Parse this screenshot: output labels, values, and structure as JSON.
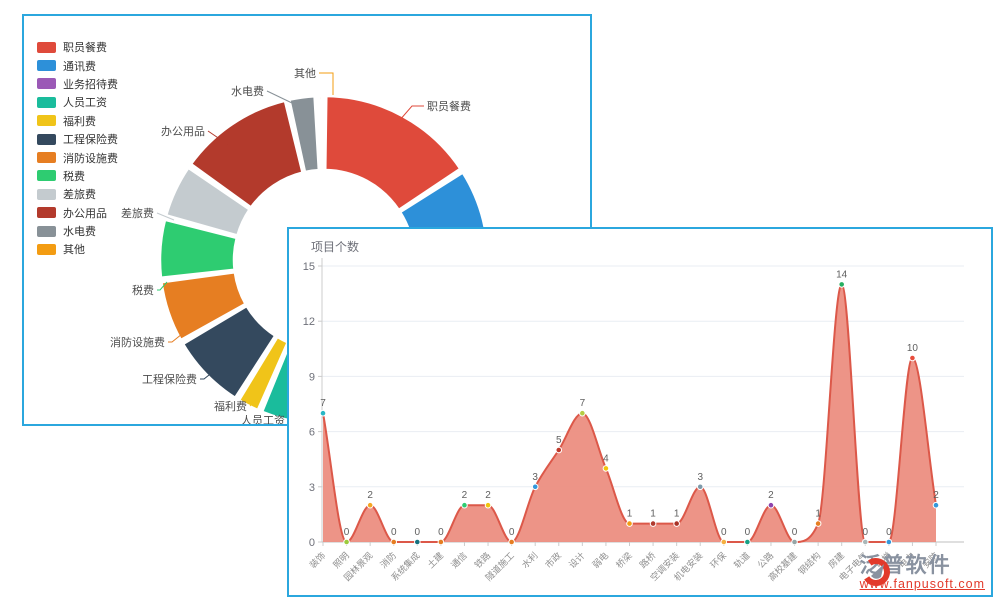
{
  "back_panel": {
    "legend": [
      {
        "label": "职员餐费",
        "color": "#df4a3b"
      },
      {
        "label": "通讯费",
        "color": "#2d90d9"
      },
      {
        "label": "业务招待费",
        "color": "#9b59b6"
      },
      {
        "label": "人员工资",
        "color": "#1abc9c"
      },
      {
        "label": "福利费",
        "color": "#f0c419"
      },
      {
        "label": "工程保险费",
        "color": "#34495e"
      },
      {
        "label": "消防设施费",
        "color": "#e67e22"
      },
      {
        "label": "税费",
        "color": "#2ecc71"
      },
      {
        "label": "差旅费",
        "color": "#c4cbcf"
      },
      {
        "label": "办公用品",
        "color": "#b33a2c"
      },
      {
        "label": "水电费",
        "color": "#889197"
      },
      {
        "label": "其他",
        "color": "#f39c12"
      }
    ]
  },
  "front_panel": {
    "title": "项目个数",
    "watermark": {
      "brand": "泛普软件",
      "url": "www.fanpusoft.com"
    }
  },
  "chart_data": [
    {
      "type": "pie",
      "donut": true,
      "legend_position": "left",
      "slices": [
        {
          "name": "职员餐费",
          "color": "#df4a3b",
          "start_deg": 0,
          "end_deg": 57,
          "callout": {
            "line": [
              [
                375,
                105
              ],
              [
                388,
                90
              ],
              [
                400,
                90
              ]
            ],
            "text": [
              403,
              90
            ],
            "anchor": "start"
          }
        },
        {
          "name": "通讯费",
          "color": "#2d90d9",
          "start_deg": 57,
          "end_deg": 95,
          "callout": null
        },
        {
          "name": "业务招待费",
          "color": "#9b59b6",
          "start_deg": 95,
          "end_deg": 135,
          "callout": null
        },
        {
          "name": "人员工资",
          "color": "#1abc9c",
          "start_deg": 135,
          "end_deg": 203,
          "callout": {
            "line": [
              [
                264,
                402
              ],
              [
                268,
                398
              ]
            ],
            "text": [
              261,
              404
            ],
            "anchor": "end"
          }
        },
        {
          "name": "福利费",
          "color": "#f0c419",
          "start_deg": 203,
          "end_deg": 212,
          "callout": {
            "line": [
              [
                232,
                384
              ],
              [
                226,
                390
              ]
            ],
            "text": [
              223,
              390
            ],
            "anchor": "end"
          }
        },
        {
          "name": "工程保险费",
          "color": "#34495e",
          "start_deg": 212,
          "end_deg": 240,
          "callout": {
            "line": [
              [
                190,
                355
              ],
              [
                180,
                363
              ],
              [
                176,
                363
              ]
            ],
            "text": [
              173,
              363
            ],
            "anchor": "end"
          }
        },
        {
          "name": "消防设施费",
          "color": "#e67e22",
          "start_deg": 240,
          "end_deg": 263,
          "callout": {
            "line": [
              [
                158,
                318
              ],
              [
                148,
                326
              ],
              [
                144,
                326
              ]
            ],
            "text": [
              141,
              326
            ],
            "anchor": "end"
          }
        },
        {
          "name": "税费",
          "color": "#2ecc71",
          "start_deg": 263,
          "end_deg": 285,
          "callout": {
            "line": [
              [
                143,
                266
              ],
              [
                136,
                274
              ],
              [
                133,
                274
              ]
            ],
            "text": [
              130,
              274
            ],
            "anchor": "end"
          }
        },
        {
          "name": "差旅费",
          "color": "#c4cbcf",
          "start_deg": 285,
          "end_deg": 305,
          "callout": {
            "line": [
              [
                150,
                204
              ],
              [
                133,
                197
              ]
            ],
            "text": [
              130,
              197
            ],
            "anchor": "end"
          }
        },
        {
          "name": "办公用品",
          "color": "#b33a2c",
          "start_deg": 305,
          "end_deg": 347,
          "callout": {
            "line": [
              [
                206,
                130
              ],
              [
                184,
                115
              ]
            ],
            "text": [
              181,
              115
            ],
            "anchor": "end"
          }
        },
        {
          "name": "水电费",
          "color": "#889197",
          "start_deg": 347,
          "end_deg": 357.5,
          "callout": {
            "line": [
              [
                268,
                87
              ],
              [
                243,
                75
              ]
            ],
            "text": [
              240,
              75
            ],
            "anchor": "end"
          }
        },
        {
          "name": "其他",
          "color": "#f39c12",
          "start_deg": 357.5,
          "end_deg": 360,
          "callout": {
            "line": [
              [
                309,
                79
              ],
              [
                309,
                57
              ],
              [
                295,
                57
              ]
            ],
            "text": [
              292,
              57
            ],
            "anchor": "end"
          }
        }
      ]
    },
    {
      "type": "area",
      "title": "项目个数",
      "smooth": true,
      "grid": true,
      "ylim": [
        0,
        15
      ],
      "yticks": [
        0,
        3,
        6,
        9,
        12,
        15
      ],
      "categories": [
        "装饰",
        "照明",
        "园林景观",
        "消防",
        "系统集成",
        "土建",
        "通信",
        "铁路",
        "隧道施工",
        "水利",
        "市政",
        "设计",
        "弱电",
        "桥梁",
        "路桥",
        "空调安装",
        "机电安装",
        "环保",
        "轨道",
        "公路",
        "高校基建",
        "钢结构",
        "房建",
        "电子电气",
        "电梯",
        "电力",
        "安防"
      ],
      "values": [
        7,
        0,
        2,
        0,
        0,
        0,
        2,
        2,
        0,
        3,
        5,
        7,
        4,
        1,
        1,
        1,
        3,
        0,
        0,
        2,
        0,
        1,
        14,
        0,
        0,
        10,
        2
      ],
      "point_colors": [
        "#29b6c5",
        "#9ccb3c",
        "#f5a623",
        "#e67e22",
        "#15717f",
        "#e67e22",
        "#2ecc71",
        "#f1c40f",
        "#e67e22",
        "#3498db",
        "#c0392b",
        "#b5cc44",
        "#f1c40f",
        "#f39c12",
        "#b03a2e",
        "#a93226",
        "#7f9aaa",
        "#f5b041",
        "#16a085",
        "#8e44ad",
        "#95a5a6",
        "#e67e22",
        "#27ae60",
        "#aab7b8",
        "#3498db",
        "#e74c3c",
        "#3498db"
      ],
      "line_color": "#dc5849",
      "fill_color": "#ec8e81",
      "label_color": "#5f5f5f",
      "axis_color": "#cccccc",
      "text_color": "#999999"
    }
  ]
}
